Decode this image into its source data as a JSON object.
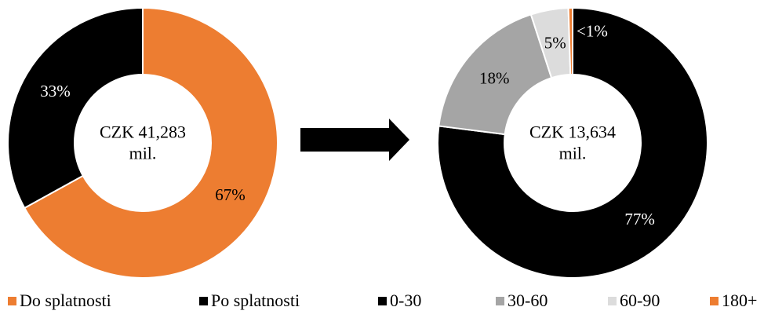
{
  "colors": {
    "orange": "#ED7D31",
    "black": "#000000",
    "gray": "#A5A5A5",
    "lightgray": "#DCDCDC",
    "white": "#FFFFFF"
  },
  "chart_data": [
    {
      "type": "pie",
      "donut": true,
      "center_label": "CZK 41,283\nmil.",
      "slices": [
        {
          "name": "Do splatnosti",
          "value": 67,
          "label": "67%",
          "color": "#ED7D31",
          "label_color": "#000000"
        },
        {
          "name": "Po splatnosti",
          "value": 33,
          "label": "33%",
          "color": "#000000",
          "label_color": "#FFFFFF"
        }
      ],
      "legend": [
        "Do splatnosti",
        "Po splatnosti"
      ]
    },
    {
      "type": "pie",
      "donut": true,
      "center_label": "CZK 13,634\nmil.",
      "slices": [
        {
          "name": "0-30",
          "value": 77,
          "label": "77%",
          "color": "#000000",
          "label_color": "#FFFFFF"
        },
        {
          "name": "30-60",
          "value": 18,
          "label": "18%",
          "color": "#A5A5A5",
          "label_color": "#000000"
        },
        {
          "name": "60-90",
          "value": 4.5,
          "label": "5%",
          "color": "#DCDCDC",
          "label_color": "#000000"
        },
        {
          "name": "180+",
          "value": 0.5,
          "label": "<1%",
          "color": "#ED7D31",
          "label_color": "#FFFFFF"
        }
      ],
      "legend": [
        "0-30",
        "30-60",
        "60-90",
        "180+"
      ]
    }
  ]
}
